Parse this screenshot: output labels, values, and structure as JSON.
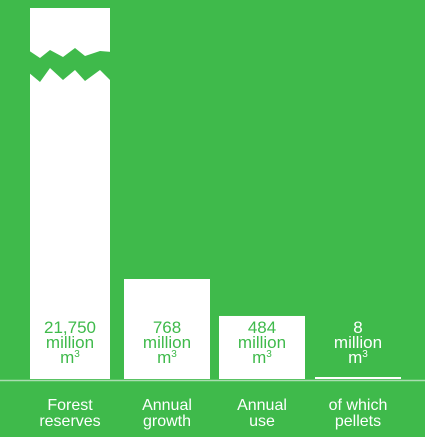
{
  "colors": {
    "background": "#3fba4b",
    "bar": "#ffffff",
    "value_text": "#3fba4b",
    "label_text": "#ffffff",
    "baseline": "#a9ddb0"
  },
  "chart_data": {
    "type": "bar",
    "categories": [
      "Forest\nreserves",
      "Annual\ngrowth",
      "Annual\nuse",
      "of which\npellets"
    ],
    "values": [
      21750,
      768,
      484,
      8
    ],
    "value_labels": [
      {
        "number": "21,750",
        "unit_word": "million",
        "unit": "m",
        "unit_sup": "3"
      },
      {
        "number": "768",
        "unit_word": "million",
        "unit": "m",
        "unit_sup": "3"
      },
      {
        "number": "484",
        "unit_word": "million",
        "unit": "m",
        "unit_sup": "3"
      },
      {
        "number": "8",
        "unit_word": "million",
        "unit": "m",
        "unit_sup": "3"
      }
    ],
    "axis_break": {
      "bar_index": 0
    },
    "ylim": [
      0,
      1025
    ],
    "grid": false,
    "title": "",
    "xlabel": "",
    "ylabel": ""
  }
}
